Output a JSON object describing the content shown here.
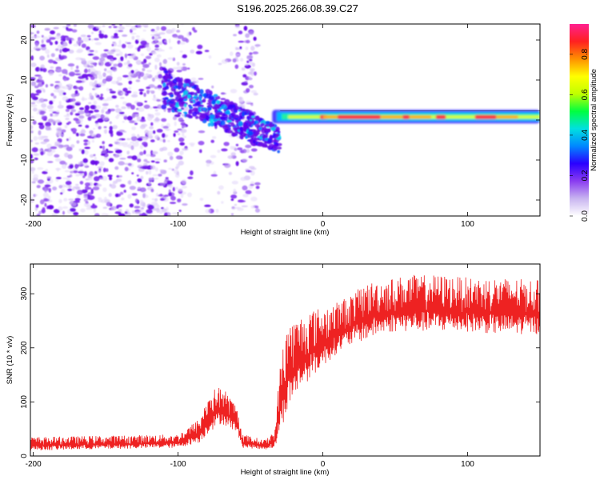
{
  "title": "S196.2025.266.08.39.C27",
  "chart_data": [
    {
      "type": "heatmap",
      "xlabel": "Height of straight line (km)",
      "ylabel": "Frequency (Hz)",
      "xlim": [
        -202,
        150
      ],
      "ylim": [
        -24,
        24
      ],
      "xticks": [
        -200,
        -100,
        0,
        100
      ],
      "yticks": [
        -20,
        -10,
        0,
        10,
        20
      ],
      "colorbar": {
        "label": "Normalized spectral amplitude",
        "range": [
          0,
          0.95
        ],
        "ticks": [
          0.0,
          0.2,
          0.4,
          0.6,
          0.8
        ],
        "colors": [
          "#ffffff",
          "#c8b4f0",
          "#8a3cf0",
          "#2a00ff",
          "#0088ff",
          "#00e0e0",
          "#00ff40",
          "#c0ff00",
          "#ffff00",
          "#ff9000",
          "#ff2020",
          "#ff2090"
        ]
      },
      "features": [
        {
          "name": "noise",
          "x": [
            -202,
            -45
          ],
          "freq": [
            -24,
            24
          ],
          "amplitude": 0.1
        },
        {
          "name": "chirp",
          "x": [
            -110,
            -30
          ],
          "freq": [
            8,
            -5
          ],
          "amplitude": 0.3
        },
        {
          "name": "tone",
          "x": [
            -35,
            150
          ],
          "freq": [
            0.5,
            1
          ],
          "amplitude": 0.9
        }
      ]
    },
    {
      "type": "line",
      "xlabel": "Height of straight line (km)",
      "ylabel": "SNR (10 * v/v)",
      "xlim": [
        -202,
        150
      ],
      "ylim": [
        0,
        355
      ],
      "xticks": [
        -200,
        -100,
        0,
        100
      ],
      "yticks": [
        0,
        100,
        200,
        300
      ],
      "series": [
        {
          "name": "SNR",
          "color": "#ee2222",
          "envelope_x": [
            -202,
            -100,
            -85,
            -78,
            -70,
            -60,
            -55,
            -40,
            -33,
            -30,
            -25,
            -20,
            -10,
            0,
            10,
            20,
            30,
            40,
            50,
            60,
            80,
            100,
            120,
            150
          ],
          "envelope_baseline": [
            10,
            15,
            25,
            45,
            60,
            45,
            15,
            12,
            15,
            40,
            80,
            110,
            140,
            165,
            190,
            205,
            215,
            225,
            230,
            230,
            230,
            230,
            225,
            225
          ],
          "envelope_peak": [
            35,
            40,
            70,
            120,
            130,
            95,
            40,
            30,
            50,
            160,
            250,
            250,
            270,
            275,
            285,
            300,
            320,
            325,
            330,
            335,
            335,
            330,
            330,
            325
          ]
        }
      ]
    }
  ]
}
